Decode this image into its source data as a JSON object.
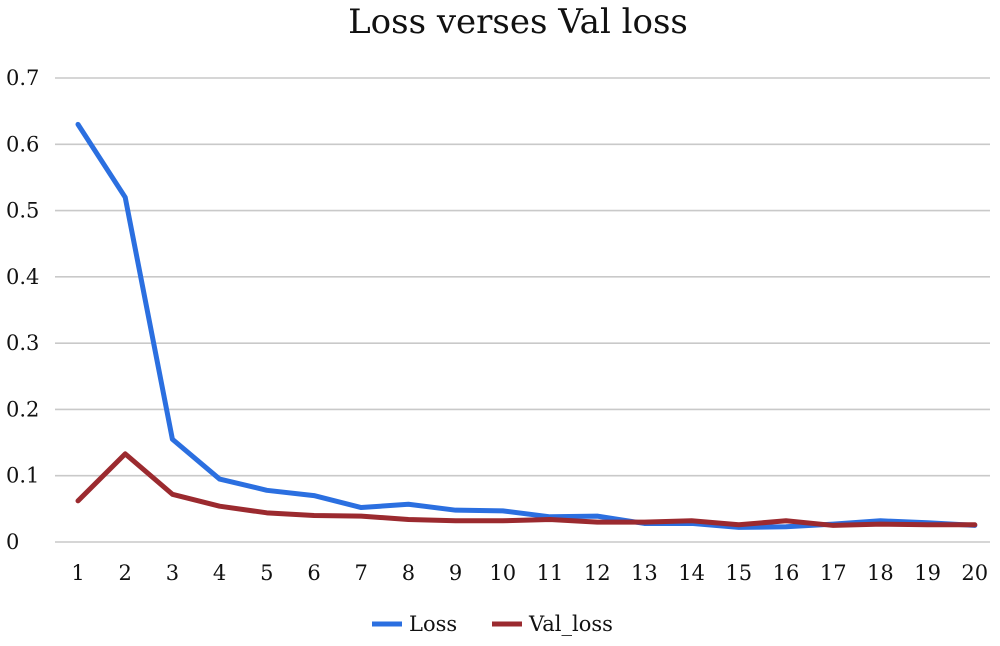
{
  "chart_data": {
    "type": "line",
    "title": "Loss verses Val loss",
    "xlabel": "",
    "ylabel": "",
    "x": [
      1,
      2,
      3,
      4,
      5,
      6,
      7,
      8,
      9,
      10,
      11,
      12,
      13,
      14,
      15,
      16,
      17,
      18,
      19,
      20
    ],
    "ylim": [
      0,
      0.7
    ],
    "yticks": [
      0,
      0.1,
      0.2,
      0.3,
      0.4,
      0.5,
      0.6,
      0.7
    ],
    "ytick_labels": [
      "0",
      "0.1",
      "0.2",
      "0.3",
      "0.4",
      "0.5",
      "0.6",
      "0.7"
    ],
    "grid": true,
    "legend_position": "bottom-center",
    "series": [
      {
        "name": "Loss",
        "color": "#2b6fe0",
        "values": [
          0.63,
          0.52,
          0.155,
          0.095,
          0.078,
          0.07,
          0.052,
          0.057,
          0.048,
          0.047,
          0.038,
          0.039,
          0.028,
          0.028,
          0.022,
          0.023,
          0.027,
          0.032,
          0.029,
          0.025
        ]
      },
      {
        "name": "Val_loss",
        "color": "#9b2a2f",
        "values": [
          0.062,
          0.133,
          0.072,
          0.054,
          0.044,
          0.04,
          0.039,
          0.034,
          0.032,
          0.032,
          0.034,
          0.03,
          0.03,
          0.032,
          0.026,
          0.032,
          0.025,
          0.027,
          0.026,
          0.026
        ]
      }
    ]
  }
}
